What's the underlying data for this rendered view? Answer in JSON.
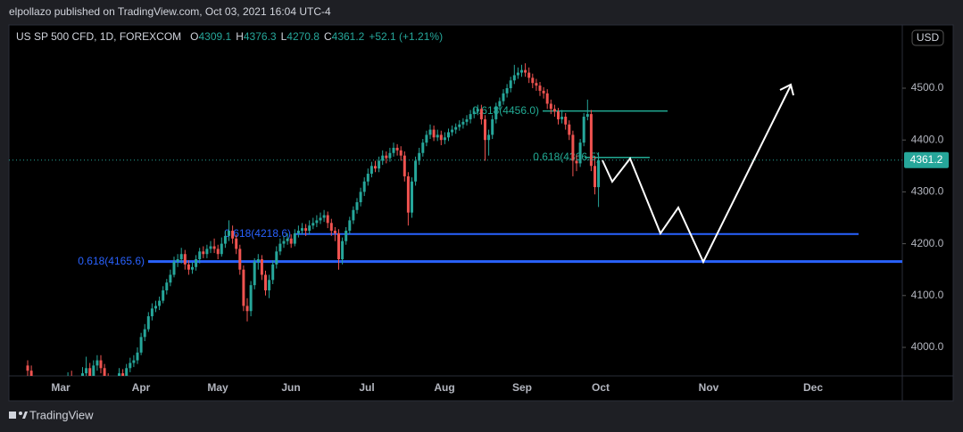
{
  "header": {
    "publisher": "elpollazo published on TradingView.com, Oct 03, 2021 16:04 UTC-4",
    "symbol": "US SP 500 CFD, 1D, FOREXCOM",
    "ohlc_letters": [
      "O",
      "H",
      "L",
      "C"
    ],
    "change": "+52.1 (+1.21%)",
    "currency": "USD",
    "brand": "TradingView"
  },
  "chart_data": {
    "type": "candlestick",
    "up_color": "#26a69a",
    "down_color": "#ef5350",
    "open": [
      3965,
      3955,
      3900,
      3870,
      3840,
      3820,
      3850,
      3880,
      3900,
      3870,
      3890,
      3920,
      3940,
      3915,
      3905,
      3930,
      3950,
      3960,
      3945,
      3965,
      3975,
      3960,
      3940,
      3920,
      3910,
      3930,
      3950,
      3935,
      3960,
      3970,
      3975,
      3990,
      4020,
      4035,
      4060,
      4075,
      4080,
      4090,
      4110,
      4125,
      4140,
      4165,
      4170,
      4180,
      4160,
      4150,
      4155,
      4170,
      4185,
      4180,
      4190,
      4195,
      4190,
      4180,
      4200,
      4215,
      4225,
      4210,
      4190,
      4150,
      4080,
      4070,
      4120,
      4165,
      4170,
      4140,
      4110,
      4130,
      4160,
      4185,
      4200,
      4205,
      4210,
      4200,
      4220,
      4225,
      4230,
      4225,
      4235,
      4240,
      4245,
      4250,
      4255,
      4240,
      4225,
      4220,
      4170,
      4205,
      4225,
      4245,
      4265,
      4280,
      4300,
      4320,
      4335,
      4350,
      4345,
      4360,
      4370,
      4365,
      4375,
      4385,
      4380,
      4370,
      4330,
      4260,
      4320,
      4360,
      4375,
      4395,
      4410,
      4420,
      4405,
      4410,
      4400,
      4405,
      4415,
      4420,
      4425,
      4430,
      4435,
      4440,
      4450,
      4455,
      4460,
      4440,
      4400,
      4410,
      4440,
      4465,
      4475,
      4490,
      4500,
      4515,
      4525,
      4530,
      4535,
      4530,
      4520,
      4510,
      4505,
      4495,
      4490,
      4470,
      4460,
      4455,
      4440,
      4445,
      4430,
      4410,
      4360,
      4355,
      4395,
      4445,
      4450,
      4350,
      4309.1
    ],
    "high": [
      3975,
      3965,
      3910,
      3880,
      3855,
      3860,
      3890,
      3910,
      3912,
      3900,
      3930,
      3952,
      3955,
      3925,
      3940,
      3962,
      3982,
      3970,
      3975,
      3985,
      3985,
      3968,
      3950,
      3930,
      3940,
      3960,
      3958,
      3968,
      3980,
      3985,
      4000,
      4028,
      4045,
      4068,
      4085,
      4090,
      4098,
      4118,
      4132,
      4150,
      4175,
      4180,
      4192,
      4188,
      4168,
      4165,
      4178,
      4192,
      4195,
      4198,
      4205,
      4210,
      4198,
      4212,
      4225,
      4245,
      4235,
      4218,
      4198,
      4158,
      4095,
      4128,
      4172,
      4180,
      4178,
      4148,
      4140,
      4168,
      4195,
      4210,
      4215,
      4220,
      4218,
      4228,
      4235,
      4240,
      4238,
      4245,
      4250,
      4255,
      4260,
      4265,
      4262,
      4248,
      4232,
      4228,
      4212,
      4232,
      4252,
      4272,
      4288,
      4308,
      4328,
      4345,
      4358,
      4360,
      4368,
      4380,
      4378,
      4385,
      4395,
      4392,
      4388,
      4378,
      4338,
      4328,
      4368,
      4385,
      4402,
      4418,
      4430,
      4428,
      4420,
      4418,
      4415,
      4422,
      4428,
      4432,
      4438,
      4442,
      4448,
      4458,
      4462,
      4468,
      4468,
      4448,
      4420,
      4448,
      4472,
      4482,
      4498,
      4508,
      4522,
      4545,
      4540,
      4545,
      4548,
      4540,
      4528,
      4518,
      4512,
      4502,
      4498,
      4478,
      4468,
      4462,
      4458,
      4452,
      4438,
      4418,
      4372,
      4402,
      4452,
      4478,
      4458,
      4368,
      4376.3
    ],
    "low": [
      3945,
      3890,
      3860,
      3830,
      3805,
      3810,
      3840,
      3870,
      3860,
      3860,
      3880,
      3912,
      3905,
      3895,
      3898,
      3922,
      3940,
      3935,
      3938,
      3955,
      3950,
      3930,
      3912,
      3900,
      3902,
      3925,
      3925,
      3930,
      3952,
      3962,
      3968,
      3985,
      4012,
      4030,
      4052,
      4068,
      4072,
      4085,
      4102,
      4118,
      4135,
      4155,
      4162,
      4150,
      4140,
      4142,
      4148,
      4162,
      4172,
      4172,
      4182,
      4182,
      4170,
      4175,
      4192,
      4205,
      4200,
      4180,
      4140,
      4070,
      4050,
      4060,
      4112,
      4150,
      4130,
      4100,
      4095,
      4122,
      4152,
      4178,
      4192,
      4198,
      4192,
      4195,
      4212,
      4218,
      4215,
      4218,
      4228,
      4232,
      4238,
      4242,
      4230,
      4215,
      4205,
      4150,
      4160,
      4198,
      4218,
      4238,
      4258,
      4272,
      4292,
      4312,
      4328,
      4338,
      4338,
      4352,
      4355,
      4358,
      4368,
      4370,
      4360,
      4320,
      4235,
      4250,
      4312,
      4352,
      4368,
      4388,
      4402,
      4398,
      4398,
      4390,
      4392,
      4398,
      4408,
      4412,
      4418,
      4422,
      4428,
      4432,
      4442,
      4448,
      4430,
      4360,
      4370,
      4402,
      4432,
      4458,
      4468,
      4482,
      4492,
      4508,
      4518,
      4522,
      4522,
      4510,
      4500,
      4495,
      4485,
      4480,
      4460,
      4450,
      4445,
      4430,
      4432,
      4420,
      4400,
      4330,
      4340,
      4348,
      4388,
      4438,
      4340,
      4295,
      4270.8
    ],
    "close": [
      3955,
      3900,
      3870,
      3840,
      3820,
      3850,
      3880,
      3900,
      3870,
      3890,
      3920,
      3940,
      3915,
      3905,
      3930,
      3950,
      3960,
      3945,
      3965,
      3975,
      3960,
      3940,
      3920,
      3910,
      3930,
      3950,
      3935,
      3960,
      3970,
      3975,
      3990,
      4020,
      4035,
      4060,
      4075,
      4080,
      4090,
      4110,
      4125,
      4140,
      4165,
      4170,
      4180,
      4160,
      4150,
      4155,
      4170,
      4185,
      4180,
      4190,
      4195,
      4190,
      4180,
      4200,
      4215,
      4225,
      4210,
      4190,
      4150,
      4080,
      4070,
      4120,
      4165,
      4170,
      4140,
      4110,
      4130,
      4160,
      4185,
      4200,
      4205,
      4210,
      4200,
      4220,
      4225,
      4230,
      4225,
      4235,
      4240,
      4245,
      4250,
      4255,
      4240,
      4225,
      4220,
      4170,
      4205,
      4225,
      4245,
      4265,
      4280,
      4300,
      4320,
      4335,
      4350,
      4345,
      4360,
      4370,
      4365,
      4375,
      4385,
      4380,
      4370,
      4330,
      4260,
      4320,
      4360,
      4375,
      4395,
      4410,
      4420,
      4405,
      4410,
      4400,
      4405,
      4415,
      4420,
      4425,
      4430,
      4435,
      4440,
      4450,
      4455,
      4460,
      4440,
      4400,
      4410,
      4440,
      4465,
      4475,
      4490,
      4500,
      4515,
      4525,
      4530,
      4535,
      4530,
      4520,
      4510,
      4505,
      4495,
      4490,
      4470,
      4460,
      4455,
      4440,
      4445,
      4430,
      4410,
      4360,
      4355,
      4395,
      4445,
      4450,
      4350,
      4309.1,
      4361.2
    ],
    "ylim": [
      3945,
      4622
    ],
    "yticks": [
      {
        "value": 4000,
        "label": "4000.0"
      },
      {
        "value": 4100,
        "label": "4100.0"
      },
      {
        "value": 4200,
        "label": "4200.0"
      },
      {
        "value": 4300,
        "label": "4300.0"
      },
      {
        "value": 4400,
        "label": "4400.0"
      },
      {
        "value": 4500,
        "label": "4500.0"
      }
    ],
    "xticks": [
      "Mar",
      "Apr",
      "May",
      "Jun",
      "Jul",
      "Aug",
      "Sep",
      "Oct",
      "Nov",
      "Dec"
    ],
    "levels": [
      {
        "label": "0.618(4456.0)",
        "value": 4456.0,
        "color": "#22ab94"
      },
      {
        "label": "0.618(4366.5)",
        "value": 4366.5,
        "color": "#22ab94"
      },
      {
        "label": "0.618(4218.6)",
        "value": 4218.6,
        "color": "#2962ff"
      },
      {
        "label": "0.618(4165.6)",
        "value": 4165.6,
        "color": "#2962ff"
      }
    ]
  }
}
